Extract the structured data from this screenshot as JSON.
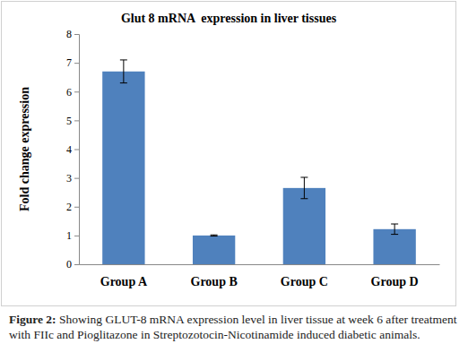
{
  "chart_data": {
    "type": "bar",
    "title": "Glut 8 mRNA  expression in liver tissues",
    "y_label": "Fold change expression",
    "categories": [
      "Group A",
      "Group B",
      "Group C",
      "Group D"
    ],
    "values": [
      6.7,
      1.0,
      2.65,
      1.22
    ],
    "errors": [
      0.4,
      0.02,
      0.37,
      0.18
    ],
    "color": "#4f81bd",
    "ylim": [
      0,
      8
    ],
    "yticks": [
      0,
      1,
      2,
      3,
      4,
      5,
      6,
      7,
      8
    ],
    "grid": false,
    "caption_label": "Figure 2:",
    "caption": "Showing GLUT-8 mRNA expression level in liver tissue at week 6 after treatment with FIIc and Pioglitazone in Streptozotocin-Nicotinamide induced diabetic animals."
  }
}
